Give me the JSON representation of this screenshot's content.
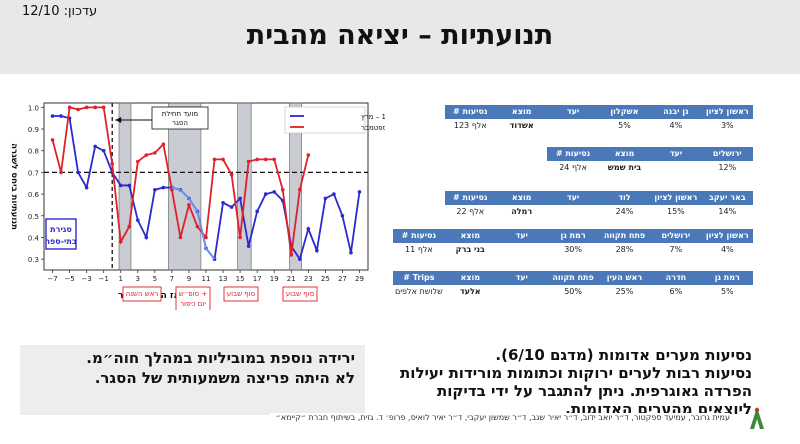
{
  "header": {
    "update_label": "עדכון: 12/10",
    "title": "תנועתיות – יציאה מהבית"
  },
  "colors": {
    "blue_series": "#2a2ad0",
    "red_series": "#e0202a",
    "light_blue": "#6f8ff0",
    "table_header": "#4a78b8"
  },
  "chart_data": {
    "type": "line",
    "ylabel": "תנועתיות ביחס לשגרה",
    "xlabel": "ימים מאז הטלת הסגר",
    "ylim": [
      0.25,
      1.02
    ],
    "xlim": [
      -8,
      30
    ],
    "x_ticks": [
      "−7",
      "−5",
      "−3",
      "−1",
      "1",
      "3",
      "5",
      "7",
      "9",
      "11",
      "13",
      "15",
      "17",
      "19",
      "21",
      "23",
      "25",
      "27",
      "29"
    ],
    "y_ticks": [
      "0.3",
      "0.4",
      "0.5",
      "0.6",
      "0.7",
      "0.8",
      "0.9",
      "1.0"
    ],
    "reference_line": 0.7,
    "start_line_x": 0,
    "shaded_x_ranges": [
      [
        0.8,
        2.2
      ],
      [
        6.6,
        10.4
      ],
      [
        14.7,
        16.3
      ],
      [
        20.8,
        22.2
      ]
    ],
    "legend": [
      "סגר 1 – מרץ",
      "סגר 2 – ספטמבר"
    ],
    "annotation_start": [
      "מועד תחילת",
      "הסגר"
    ],
    "schools_box": [
      "סגירת",
      "בתי-ספר"
    ],
    "event_labels": [
      "ראש השנה",
      "סופ״ש + יום כיפור",
      "סוף שבוע",
      "סוף שבוע"
    ],
    "series": [
      {
        "name": "סגר 1 – מרץ",
        "x": [
          -7,
          -6,
          -5,
          -4,
          -3,
          -2,
          -1,
          0,
          1,
          2,
          3,
          4,
          5,
          6,
          7,
          8,
          9,
          10,
          11,
          12,
          13,
          14,
          15,
          16,
          17,
          18,
          19,
          20,
          21,
          22,
          23,
          24,
          25,
          26,
          27,
          28,
          29
        ],
        "values": [
          0.96,
          0.96,
          0.95,
          0.7,
          0.63,
          0.82,
          0.8,
          0.7,
          0.64,
          0.64,
          0.48,
          0.4,
          0.62,
          0.63,
          0.63,
          0.62,
          0.58,
          0.52,
          0.35,
          0.3,
          0.56,
          0.54,
          0.58,
          0.36,
          0.52,
          0.6,
          0.61,
          0.57,
          0.36,
          0.3,
          0.44,
          0.34,
          0.58,
          0.6,
          0.5,
          0.33,
          0.61
        ]
      },
      {
        "name": "סגר 2 – ספטמבר",
        "x": [
          -7,
          -6,
          -5,
          -4,
          -3,
          -2,
          -1,
          0,
          1,
          2,
          3,
          4,
          5,
          6,
          7,
          8,
          9,
          10,
          11,
          12,
          13,
          14,
          15,
          16,
          17,
          18,
          19,
          20,
          21,
          22,
          23
        ],
        "values": [
          0.85,
          0.7,
          1.0,
          0.99,
          1.0,
          1.0,
          1.0,
          0.74,
          0.38,
          0.45,
          0.75,
          0.78,
          0.79,
          0.83,
          0.62,
          0.4,
          0.55,
          0.45,
          0.4,
          0.76,
          0.76,
          0.69,
          0.4,
          0.75,
          0.76,
          0.76,
          0.76,
          0.62,
          0.32,
          0.62,
          0.78
        ]
      }
    ]
  },
  "tables": [
    {
      "top": 0,
      "header": [
        "ראשון לציון",
        "גן יבנה",
        "אשקלון",
        "יעד",
        "מוצא",
        "# נסיעות"
      ],
      "values": [
        "3%",
        "4%",
        "5%",
        "",
        "אשדוד",
        "123 אלף"
      ]
    },
    {
      "top": 42,
      "header": [
        "ירושלים",
        "יעד",
        "מוצא",
        "# נסיעות"
      ],
      "values": [
        "12%",
        "",
        "בית שמש",
        "24 אלף"
      ]
    },
    {
      "top": 86,
      "header": [
        "באר יעקב",
        "ראשון לציון",
        "לוד",
        "יעד",
        "מוצא",
        "# נסיעות"
      ],
      "values": [
        "14%",
        "15%",
        "24%",
        "",
        "רמלה",
        "22 אלף"
      ]
    },
    {
      "top": 124,
      "header": [
        "ראשון לציון",
        "ירושלים",
        "פתח תקווה",
        "רמת גן",
        "יעד",
        "מוצא",
        "# נסיעות"
      ],
      "values": [
        "4%",
        "7%",
        "28%",
        "30%",
        "",
        "בני ברק",
        "11 אלף"
      ]
    },
    {
      "top": 166,
      "header": [
        "רמת גן",
        "חדרה",
        "ראש העין",
        "פתח תקווה",
        "יעד",
        "מוצא",
        "# Trips"
      ],
      "values": [
        "5%",
        "6%",
        "25%",
        "50%",
        "",
        "אלעד",
        "שלושת אלפים"
      ]
    }
  ],
  "bottom_left": {
    "line1": "ירידה נוספת במוביליות במהלך חוה״מ.",
    "line2": "לא היתה פריצה משמעותית של הסגר."
  },
  "bottom_right": {
    "line1": "נסיעות מערים אדומות (מדגם 6/10).",
    "line2": "נסיעות רבות לערים ירוקות וכתומות מורידות יעילות",
    "line3": "הפרדה גאוגרפית. ניתן להתגבר על ידי בדיקות",
    "line4": "ליוצאים מהערים האדומות."
  },
  "credit": "עמית גרובר, עמיעד ספקטור, ד״ר יואב ידוב, ד״ר יאיר שגב, ד״ר שמשון יעקבי, ד״ר יאיר לואיס, פרופ׳ ד. גזית, בשיתוף חברת ״קיימא״"
}
